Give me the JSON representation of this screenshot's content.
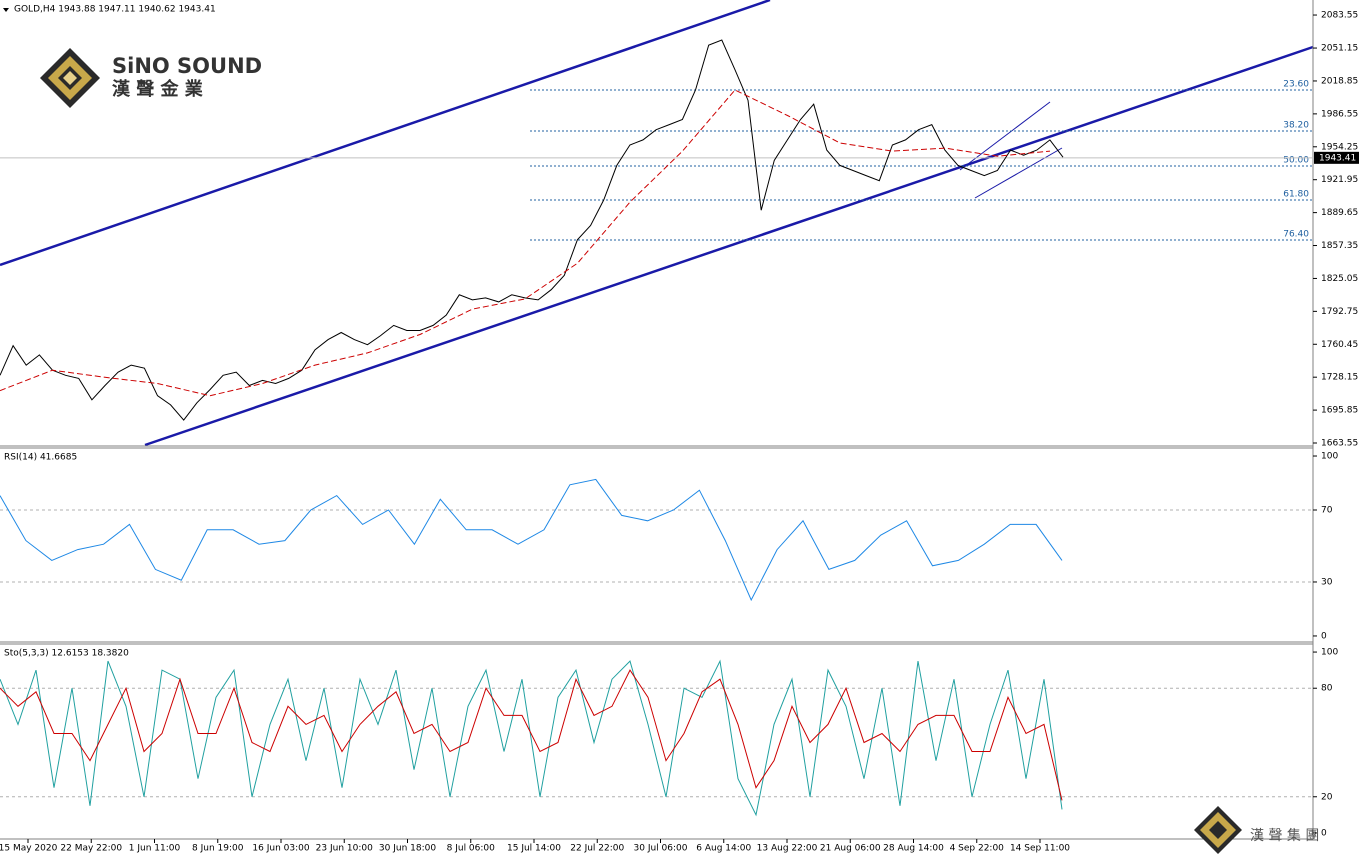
{
  "header": "GOLD,H4  1943.88 1947.11 1940.62 1943.41",
  "logo": {
    "name": "SiNO SOUND",
    "sub": "漢 聲 金 業",
    "footer": "漢 聲 集 團"
  },
  "chart_data": [
    {
      "type": "line",
      "ylim": [
        1661.6,
        2098.3
      ],
      "yticks": [
        2083.55,
        2051.15,
        2018.85,
        1986.55,
        1954.25,
        1921.95,
        1889.65,
        1857.35,
        1825.05,
        1792.75,
        1760.45,
        1728.15,
        1695.85,
        1663.55
      ],
      "last_price": 1943.41,
      "series": [
        {
          "color": "#000000",
          "values": [
            1730,
            1759,
            1740,
            1750,
            1735,
            1730,
            1727,
            1706,
            1720,
            1733,
            1740,
            1737,
            1710,
            1701,
            1686,
            1703,
            1716,
            1730,
            1733,
            1720,
            1725,
            1722,
            1727,
            1735,
            1755,
            1765,
            1772,
            1765,
            1760,
            1769,
            1779,
            1774,
            1774,
            1779,
            1789,
            1809,
            1804,
            1806,
            1802,
            1809,
            1806,
            1804,
            1814,
            1828,
            1863,
            1877,
            1902,
            1936,
            1956,
            1961,
            1971,
            1976,
            1981,
            2010,
            2054,
            2059,
            2030,
            2000,
            1892,
            1941,
            1961,
            1981,
            1996,
            1951,
            1936,
            1931,
            1926,
            1921,
            1956,
            1961,
            1971,
            1976,
            1951,
            1936,
            1931,
            1926,
            1931,
            1951,
            1946,
            1951,
            1961,
            1944
          ]
        },
        {
          "color": "#cc0000",
          "dashed": true,
          "values": [
            1715,
            1735,
            1728,
            1722,
            1710,
            1722,
            1740,
            1752,
            1770,
            1795,
            1805,
            1840,
            1900,
            1950,
            2010,
            1985,
            1958,
            1950,
            1953,
            1945,
            1950
          ]
        }
      ],
      "fib_levels": [
        {
          "value": 2010,
          "label": "23.60"
        },
        {
          "value": 1969.7,
          "label": "38.20"
        },
        {
          "value": 1935.4,
          "label": "50.00"
        },
        {
          "value": 1902,
          "label": "61.80"
        },
        {
          "value": 1862.8,
          "label": "76.40"
        }
      ]
    },
    {
      "type": "line",
      "title": "RSI(14) 41.6685",
      "ylim": [
        -2.8,
        103.9
      ],
      "yticks": [
        0,
        30,
        70,
        100
      ],
      "grid_at": [
        30,
        70
      ],
      "series": [
        {
          "color": "#1e88e5",
          "values": [
            78,
            53,
            42,
            48,
            51,
            62,
            37,
            31,
            59,
            59,
            51,
            53,
            70,
            78,
            62,
            70,
            51,
            76,
            59,
            59,
            51,
            59,
            84,
            87,
            67,
            64,
            70,
            81,
            53,
            20,
            48,
            64,
            37,
            42,
            56,
            64,
            39,
            42,
            51,
            62,
            62,
            42
          ]
        }
      ]
    },
    {
      "type": "line",
      "title": "Sto(5,3,3) 12.6153 18.3820",
      "ylim": [
        -2.8,
        103.9
      ],
      "yticks": [
        0,
        20,
        80,
        100
      ],
      "grid_at": [
        20,
        80
      ],
      "series": [
        {
          "color": "#20a0a0",
          "values": [
            85,
            60,
            90,
            25,
            80,
            15,
            95,
            70,
            20,
            90,
            85,
            30,
            75,
            90,
            20,
            60,
            85,
            40,
            80,
            25,
            85,
            60,
            90,
            35,
            80,
            20,
            70,
            90,
            45,
            85,
            20,
            75,
            90,
            50,
            85,
            95,
            60,
            20,
            80,
            75,
            95,
            30,
            10,
            60,
            85,
            20,
            90,
            70,
            30,
            80,
            15,
            95,
            40,
            85,
            20,
            60,
            90,
            30,
            85,
            13
          ]
        },
        {
          "color": "#cc0000",
          "values": [
            80,
            70,
            78,
            55,
            55,
            40,
            60,
            80,
            45,
            55,
            85,
            55,
            55,
            80,
            50,
            45,
            70,
            60,
            65,
            45,
            60,
            70,
            78,
            55,
            60,
            45,
            50,
            80,
            65,
            65,
            45,
            50,
            85,
            65,
            70,
            90,
            75,
            40,
            55,
            78,
            85,
            60,
            25,
            40,
            70,
            50,
            60,
            80,
            50,
            55,
            45,
            60,
            65,
            65,
            45,
            45,
            75,
            55,
            60,
            18
          ]
        }
      ],
      "x_labels": [
        "15 May 2020",
        "22 May 22:00",
        "1 Jun 11:00",
        "8 Jun 19:00",
        "16 Jun 03:00",
        "23 Jun 10:00",
        "30 Jun 18:00",
        "8 Jul 06:00",
        "15 Jul 14:00",
        "22 Jul 22:00",
        "30 Jul 06:00",
        "6 Aug 14:00",
        "13 Aug 22:00",
        "21 Aug 06:00",
        "28 Aug 14:00",
        "4 Sep 22:00",
        "14 Sep 11:00"
      ]
    }
  ]
}
